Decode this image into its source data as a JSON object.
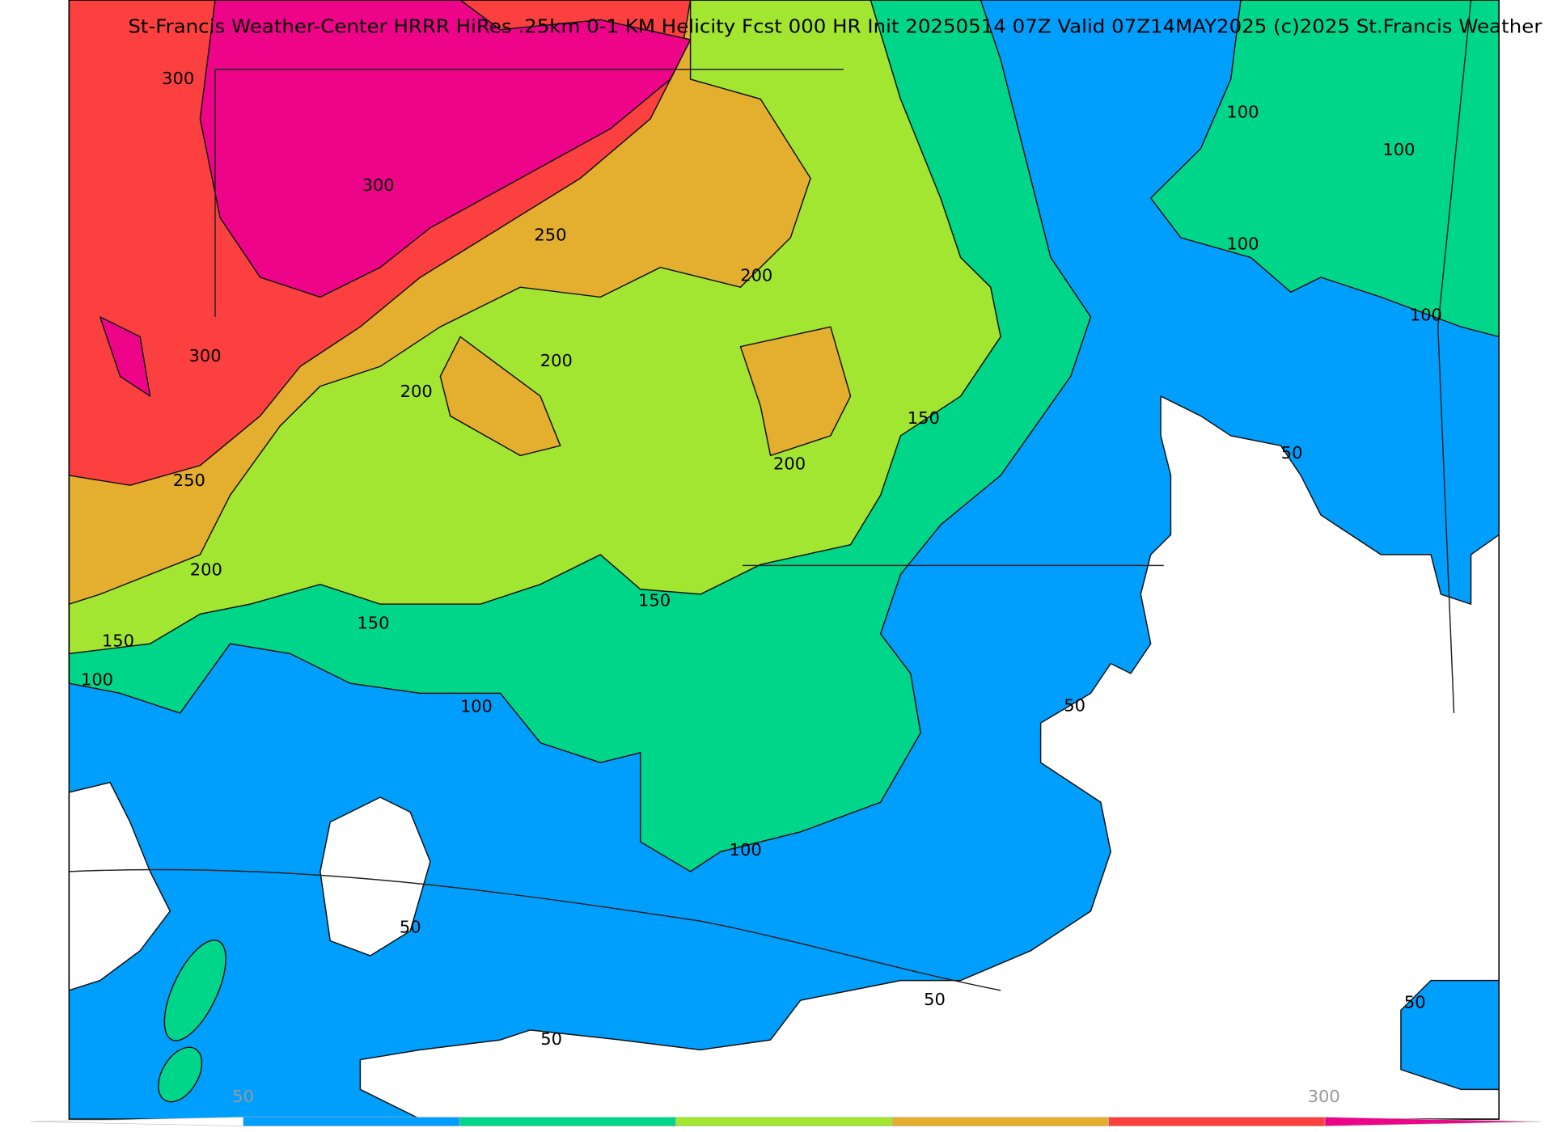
{
  "header": {
    "title": "St-Francis Weather-Center HRRR HiRes .25km 0-1 KM Helicity Fcst 000 HR Init 20250514 07Z  Valid 07Z14MAY2025    (c)2025 St.Francis Weather"
  },
  "contour_labels": [
    "300",
    "300",
    "250",
    "200",
    "200",
    "300",
    "200",
    "150",
    "200",
    "250",
    "200",
    "150",
    "150",
    "150",
    "100",
    "100",
    "50",
    "100",
    "50",
    "50",
    "50",
    "50",
    "100",
    "100",
    "100",
    "100",
    "50"
  ],
  "colorbar": {
    "labels": [
      "50",
      "300"
    ],
    "colors": [
      "#ffffff",
      "#009ffe",
      "#00d68a",
      "#a2e632",
      "#e4ae2e",
      "#fc4040",
      "#ee0488"
    ]
  }
}
